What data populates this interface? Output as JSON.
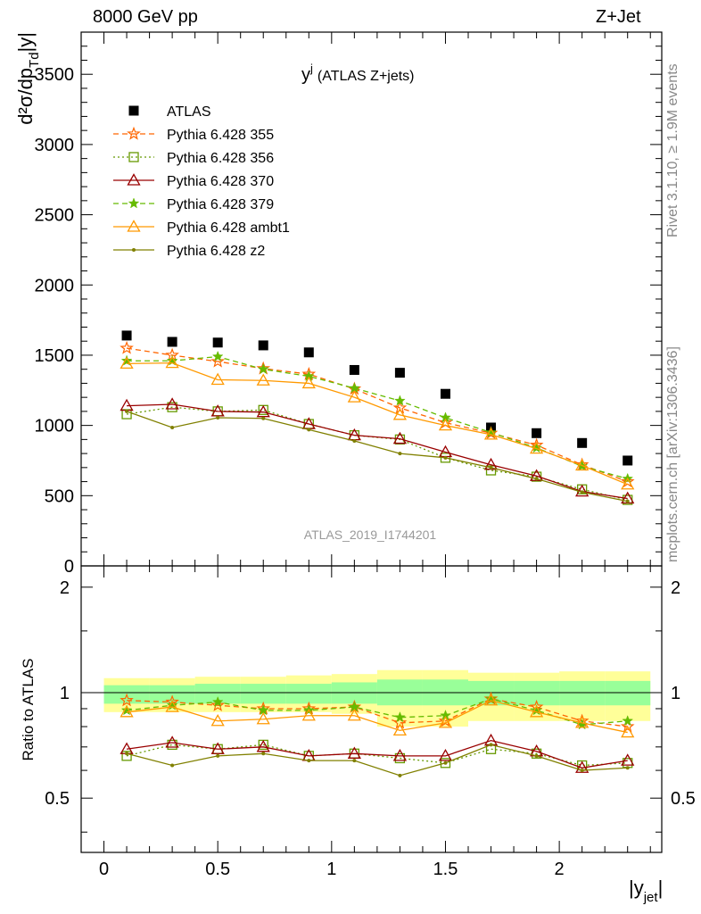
{
  "header": {
    "left": "8000 GeV pp",
    "right": "Z+Jet"
  },
  "side_labels": {
    "rivet": "Rivet 3.1.10, ≥ 1.9M events",
    "mcplots": "mcplots.cern.ch [arXiv:1306.3436]"
  },
  "chart_data": {
    "type": "scatter",
    "title": "y",
    "title_sup": "j",
    "title_suffix": "(ATLAS Z+jets)",
    "watermark": "ATLAS_2019_I1744201",
    "xlabel": "|y",
    "xlabel_sub": "jet",
    "xlabel_close": "|",
    "ylabel": "d²σ/dp",
    "ylabel_sub": "Td",
    "ylabel_suffix": "|y|",
    "xlim": [
      -0.1,
      2.45
    ],
    "ylim": [
      0,
      3800
    ],
    "x_ticks": [
      "0",
      "0.5",
      "1",
      "1.5",
      "2"
    ],
    "y_ticks": [
      "0",
      "500",
      "1000",
      "1500",
      "2000",
      "2500",
      "3000",
      "3500"
    ],
    "ratio": {
      "ylabel": "Ratio to ATLAS",
      "ylim": [
        0.35,
        2.3
      ],
      "y_ticks": [
        "0.5",
        "1",
        "2"
      ],
      "band_inner_color": "#99ff99",
      "band_outer_color": "#ffff99",
      "band_inner": [
        {
          "lo": 0.93,
          "hi": 1.05
        },
        {
          "lo": 0.93,
          "hi": 1.05
        },
        {
          "lo": 0.93,
          "hi": 1.06
        },
        {
          "lo": 0.93,
          "hi": 1.06
        },
        {
          "lo": 0.93,
          "hi": 1.06
        },
        {
          "lo": 0.93,
          "hi": 1.07
        },
        {
          "lo": 0.92,
          "hi": 1.09
        },
        {
          "lo": 0.92,
          "hi": 1.09
        },
        {
          "lo": 0.92,
          "hi": 1.08
        },
        {
          "lo": 0.92,
          "hi": 1.08
        },
        {
          "lo": 0.92,
          "hi": 1.08
        },
        {
          "lo": 0.92,
          "hi": 1.08
        }
      ],
      "band_outer": [
        {
          "lo": 0.88,
          "hi": 1.1
        },
        {
          "lo": 0.88,
          "hi": 1.1
        },
        {
          "lo": 0.88,
          "hi": 1.11
        },
        {
          "lo": 0.88,
          "hi": 1.11
        },
        {
          "lo": 0.88,
          "hi": 1.12
        },
        {
          "lo": 0.87,
          "hi": 1.13
        },
        {
          "lo": 0.8,
          "hi": 1.16
        },
        {
          "lo": 0.8,
          "hi": 1.16
        },
        {
          "lo": 0.83,
          "hi": 1.14
        },
        {
          "lo": 0.83,
          "hi": 1.14
        },
        {
          "lo": 0.83,
          "hi": 1.15
        },
        {
          "lo": 0.83,
          "hi": 1.15
        }
      ]
    },
    "x": [
      0.1,
      0.3,
      0.5,
      0.7,
      0.9,
      1.1,
      1.3,
      1.5,
      1.7,
      1.9,
      2.1,
      2.3
    ],
    "bin_edges": [
      0.0,
      0.2,
      0.4,
      0.6,
      0.8,
      1.0,
      1.2,
      1.4,
      1.6,
      1.8,
      2.0,
      2.2,
      2.4
    ],
    "series": [
      {
        "name": "ATLAS",
        "color": "#000000",
        "marker": "square",
        "line": "none",
        "values": [
          1640,
          1595,
          1590,
          1570,
          1520,
          1395,
          1375,
          1225,
          985,
          945,
          875,
          750
        ]
      },
      {
        "name": "Pythia 6.428 355",
        "color": "#ff6600",
        "marker": "star-open",
        "line": "dashed",
        "values": [
          1550,
          1500,
          1455,
          1405,
          1365,
          1260,
          1125,
          1020,
          945,
          860,
          720,
          600
        ],
        "ratio": [
          0.95,
          0.94,
          0.92,
          0.9,
          0.9,
          0.91,
          0.82,
          0.83,
          0.96,
          0.91,
          0.83,
          0.8
        ]
      },
      {
        "name": "Pythia 6.428 356",
        "color": "#669900",
        "marker": "square-open",
        "line": "dotted",
        "values": [
          1080,
          1130,
          1100,
          1110,
          1010,
          930,
          900,
          770,
          680,
          635,
          545,
          470
        ],
        "ratio": [
          0.66,
          0.71,
          0.69,
          0.71,
          0.66,
          0.67,
          0.65,
          0.63,
          0.69,
          0.67,
          0.62,
          0.63
        ]
      },
      {
        "name": "Pythia 6.428 370",
        "color": "#990000",
        "marker": "triangle-open",
        "line": "solid",
        "values": [
          1140,
          1150,
          1100,
          1095,
          1010,
          930,
          905,
          810,
          720,
          640,
          530,
          480
        ],
        "ratio": [
          0.69,
          0.72,
          0.69,
          0.7,
          0.66,
          0.67,
          0.66,
          0.66,
          0.73,
          0.68,
          0.61,
          0.64
        ]
      },
      {
        "name": "Pythia 6.428 379",
        "color": "#66bb00",
        "marker": "star",
        "line": "dashed",
        "values": [
          1460,
          1460,
          1490,
          1400,
          1350,
          1265,
          1175,
          1055,
          950,
          840,
          710,
          620
        ],
        "ratio": [
          0.89,
          0.92,
          0.94,
          0.89,
          0.89,
          0.91,
          0.85,
          0.86,
          0.96,
          0.89,
          0.81,
          0.83
        ]
      },
      {
        "name": "Pythia 6.428 ambt1",
        "color": "#ff9900",
        "marker": "triangle-open",
        "line": "solid",
        "values": [
          1440,
          1445,
          1325,
          1320,
          1300,
          1200,
          1075,
          1000,
          935,
          835,
          715,
          580
        ],
        "ratio": [
          0.88,
          0.91,
          0.83,
          0.84,
          0.86,
          0.86,
          0.78,
          0.82,
          0.95,
          0.88,
          0.82,
          0.77
        ]
      },
      {
        "name": "Pythia 6.428 z2",
        "color": "#808000",
        "marker": "dot",
        "line": "solid",
        "values": [
          1100,
          985,
          1055,
          1050,
          970,
          890,
          800,
          770,
          700,
          620,
          525,
          460
        ],
        "ratio": [
          0.67,
          0.62,
          0.66,
          0.67,
          0.64,
          0.64,
          0.58,
          0.63,
          0.71,
          0.66,
          0.6,
          0.61
        ]
      }
    ],
    "legend_position": "top-left"
  }
}
